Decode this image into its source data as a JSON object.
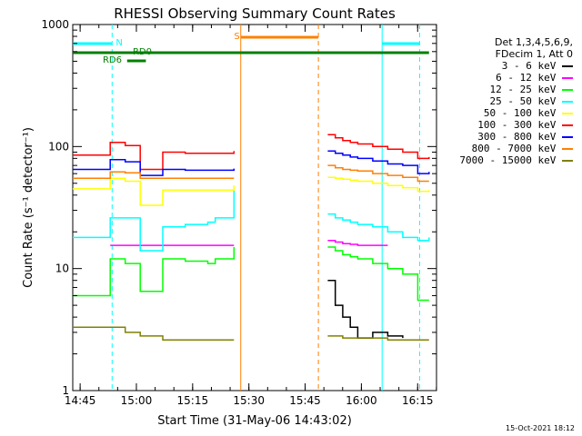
{
  "chart_data": {
    "type": "line",
    "title": "RHESSI Observing Summary Count Rates",
    "xlabel": "Start Time (31-May-06 14:43:02)",
    "ylabel": "Count Rate (s⁻¹ detector⁻¹)",
    "yscale": "log",
    "ylim": [
      1,
      1000
    ],
    "xlim_minutes": [
      0,
      97
    ],
    "x_ticks": [
      {
        "label": "14:45",
        "minute": 1.97
      },
      {
        "label": "15:00",
        "minute": 16.97
      },
      {
        "label": "15:15",
        "minute": 31.97
      },
      {
        "label": "15:30",
        "minute": 46.97
      },
      {
        "label": "15:45",
        "minute": 61.97
      },
      {
        "label": "16:00",
        "minute": 76.97
      },
      {
        "label": "16:15",
        "minute": 91.97
      }
    ],
    "y_ticks": [
      {
        "label": "1",
        "value": 1
      },
      {
        "label": "10",
        "value": 10
      },
      {
        "label": "100",
        "value": 100
      },
      {
        "label": "1000",
        "value": 1000
      }
    ],
    "legend_header": [
      "Det 1,3,4,5,6,9,",
      "FDecim 1, Att 0"
    ],
    "series": [
      {
        "name": "3 - 6 keV",
        "color": "#000000",
        "x": [
          0,
          10,
          14,
          18,
          24,
          30,
          36,
          38,
          43,
          60,
          68,
          70,
          72,
          74,
          76,
          80,
          84,
          88,
          92,
          95
        ],
        "y": [
          null,
          null,
          null,
          null,
          null,
          null,
          null,
          null,
          null,
          null,
          8,
          5,
          4,
          3.3,
          2.7,
          3,
          2.8,
          2.7,
          null,
          null
        ]
      },
      {
        "name": "6 - 12 keV",
        "color": "#ff00ff",
        "x": [
          0,
          10,
          14,
          18,
          24,
          30,
          36,
          38,
          43,
          60,
          68,
          70,
          72,
          74,
          76,
          80,
          84,
          88,
          92,
          95
        ],
        "y": [
          null,
          15.5,
          15.5,
          15.5,
          15.5,
          15.5,
          15.5,
          15.5,
          15.5,
          null,
          17,
          16.5,
          16,
          15.8,
          15.5,
          15.5,
          15.5,
          null,
          null,
          null
        ]
      },
      {
        "name": "12 - 25 keV",
        "color": "#00ff00",
        "x": [
          0,
          10,
          14,
          18,
          24,
          30,
          36,
          38,
          43,
          60,
          68,
          70,
          72,
          74,
          76,
          80,
          84,
          88,
          92,
          95
        ],
        "y": [
          6,
          12,
          11,
          6.5,
          12,
          11.5,
          11,
          12,
          15,
          null,
          15,
          14,
          13,
          12.5,
          12,
          11,
          10,
          9,
          5.5,
          5.5
        ]
      },
      {
        "name": "25 - 50 keV",
        "color": "#00ffff",
        "x": [
          0,
          10,
          14,
          18,
          24,
          30,
          36,
          38,
          43,
          60,
          68,
          70,
          72,
          74,
          76,
          80,
          84,
          88,
          92,
          95
        ],
        "y": [
          18,
          26,
          26,
          14,
          22,
          23,
          24,
          26,
          45,
          null,
          28,
          26,
          25,
          24,
          23,
          22,
          20,
          18,
          17,
          18
        ]
      },
      {
        "name": "50 - 100 keV",
        "color": "#ffff00",
        "x": [
          0,
          10,
          14,
          18,
          24,
          30,
          36,
          38,
          43,
          60,
          68,
          70,
          72,
          74,
          76,
          80,
          84,
          88,
          92,
          95
        ],
        "y": [
          45,
          55,
          52,
          33,
          44,
          44,
          44,
          44,
          48,
          null,
          56,
          55,
          54,
          53,
          52,
          50,
          48,
          46,
          43,
          44
        ]
      },
      {
        "name": "100 - 300 keV",
        "color": "#ff0000",
        "x": [
          0,
          10,
          14,
          18,
          24,
          30,
          36,
          38,
          43,
          60,
          68,
          70,
          72,
          74,
          76,
          80,
          84,
          88,
          92,
          95
        ],
        "y": [
          85,
          108,
          102,
          65,
          90,
          88,
          88,
          88,
          92,
          null,
          125,
          118,
          112,
          108,
          105,
          100,
          95,
          90,
          80,
          82
        ]
      },
      {
        "name": "300 - 800 keV",
        "color": "#0000ff",
        "x": [
          0,
          10,
          14,
          18,
          24,
          30,
          36,
          38,
          43,
          60,
          68,
          70,
          72,
          74,
          76,
          80,
          84,
          88,
          92,
          95
        ],
        "y": [
          65,
          78,
          75,
          58,
          65,
          64,
          64,
          64,
          66,
          null,
          92,
          88,
          85,
          82,
          80,
          76,
          72,
          70,
          60,
          62
        ]
      },
      {
        "name": "800 - 7000 keV",
        "color": "#ff8000",
        "x": [
          0,
          10,
          14,
          18,
          24,
          30,
          36,
          38,
          43,
          60,
          68,
          70,
          72,
          74,
          76,
          80,
          84,
          88,
          92,
          95
        ],
        "y": [
          55,
          62,
          61,
          55,
          55,
          55,
          55,
          55,
          55,
          null,
          70,
          67,
          65,
          64,
          63,
          60,
          58,
          56,
          52,
          52
        ]
      },
      {
        "name": "7000 - 15000 keV",
        "color": "#808000",
        "x": [
          0,
          10,
          14,
          18,
          24,
          30,
          36,
          38,
          43,
          60,
          68,
          70,
          72,
          74,
          76,
          80,
          84,
          88,
          92,
          95
        ],
        "y": [
          3.3,
          3.3,
          3.0,
          2.8,
          2.6,
          2.6,
          2.6,
          2.6,
          2.6,
          null,
          2.8,
          2.8,
          2.7,
          2.7,
          2.7,
          2.7,
          2.6,
          2.6,
          2.6,
          2.6
        ]
      }
    ],
    "vertical_markers": [
      {
        "minute": 10.5,
        "color": "#00ffff",
        "style": "dashed"
      },
      {
        "minute": 44.8,
        "color": "#ff8000",
        "style": "solid"
      },
      {
        "minute": 65.5,
        "color": "#ff8000",
        "style": "dashed"
      },
      {
        "minute": 82.5,
        "color": "#00ffff",
        "style": "solid"
      },
      {
        "minute": 92.5,
        "color": "#00ffff",
        "style": "dashed"
      }
    ],
    "flag_bars": [
      {
        "label": "N",
        "color": "#00ffff",
        "segments": [
          [
            0,
            10.5
          ],
          [
            82.5,
            92.5
          ]
        ],
        "level": "upper"
      },
      {
        "label": "S",
        "color": "#ff8000",
        "segments": [
          [
            44.8,
            65.5
          ]
        ],
        "level": "top"
      },
      {
        "label": "",
        "color": "#008000",
        "segments": [
          [
            0,
            95
          ]
        ],
        "level": "middle"
      },
      {
        "label": "RD6",
        "color": "#008000",
        "segments": [
          [
            14.5,
            19.5
          ]
        ],
        "level": "lower"
      }
    ],
    "flag_labels": [
      {
        "text": "N",
        "color": "#00ffff",
        "minute": 11.5
      },
      {
        "text": "S",
        "color": "#ff8000",
        "minute": 43.0
      },
      {
        "text": "RD6",
        "color": "#008000",
        "minute": 8.0
      },
      {
        "text": "RD0",
        "color": "#008000",
        "minute": 16.0
      }
    ]
  },
  "footer_date": "15-Oct-2021 18:12"
}
